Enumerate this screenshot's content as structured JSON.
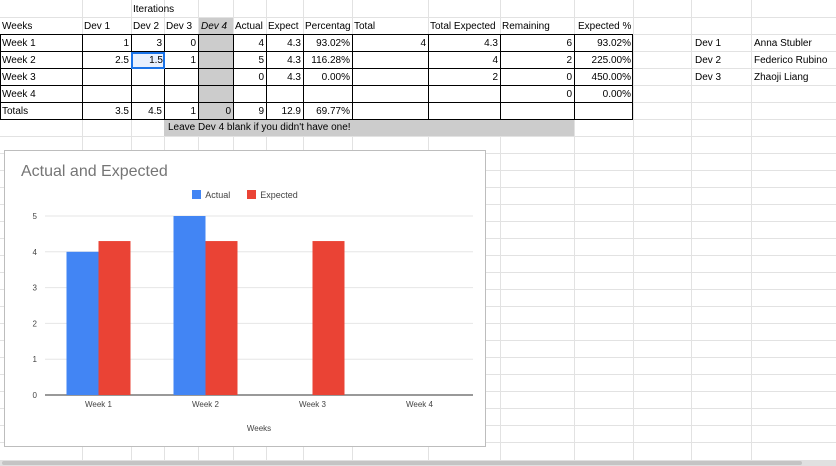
{
  "header": {
    "iterations_label": "Iterations"
  },
  "columns": [
    "Weeks",
    "Dev 1",
    "Dev 2",
    "Dev 3",
    "Dev 4",
    "Actual",
    "Expect",
    "Percentag",
    "Total",
    "",
    "Total Expected",
    "Remaining",
    "Expected %"
  ],
  "rows": [
    {
      "label": "Week 1",
      "dev1": "1",
      "dev2": "3",
      "dev3": "0",
      "dev4": "",
      "actual": "4",
      "expected": "4.3",
      "percent": "93.02%",
      "total": "4",
      "total_expected": "4.3",
      "remaining": "6",
      "expected_pct": "93.02%"
    },
    {
      "label": "Week 2",
      "dev1": "2.5",
      "dev2": "1.5",
      "dev3": "1",
      "dev4": "",
      "actual": "5",
      "expected": "4.3",
      "percent": "116.28%",
      "total": "",
      "total_expected": "4",
      "remaining": "2",
      "expected_pct": "225.00%"
    },
    {
      "label": "Week 3",
      "dev1": "",
      "dev2": "",
      "dev3": "",
      "dev4": "",
      "actual": "0",
      "expected": "4.3",
      "percent": "0.00%",
      "total": "",
      "total_expected": "2",
      "remaining": "0",
      "expected_pct": "450.00%"
    },
    {
      "label": "Week 4",
      "dev1": "",
      "dev2": "",
      "dev3": "",
      "dev4": "",
      "actual": "",
      "expected": "",
      "percent": "",
      "total": "",
      "total_expected": "",
      "remaining": "0",
      "expected_pct": "0.00%"
    }
  ],
  "totals": {
    "label": "Totals",
    "dev1": "3.5",
    "dev2": "4.5",
    "dev3": "1",
    "dev4": "0",
    "actual": "9",
    "expected": "12.9",
    "percent": "69.77%"
  },
  "note": "Leave Dev 4 blank if you didn't have one!",
  "devs": [
    {
      "id": "Dev 1",
      "name": "Anna Stubler"
    },
    {
      "id": "Dev 2",
      "name": "Federico Rubino"
    },
    {
      "id": "Dev 3",
      "name": "Zhaoji Liang"
    }
  ],
  "colors": {
    "actual": "#4285f4",
    "expected": "#ea4335",
    "selection": "#1a73e8"
  },
  "chart_data": {
    "type": "bar",
    "title": "Actual and Expected",
    "xlabel": "Weeks",
    "ylabel": "",
    "categories": [
      "Week 1",
      "Week 2",
      "Week 3",
      "Week 4"
    ],
    "series": [
      {
        "name": "Actual",
        "values": [
          4,
          5,
          0,
          0
        ]
      },
      {
        "name": "Expected",
        "values": [
          4.3,
          4.3,
          4.3,
          0
        ]
      }
    ],
    "ylim": [
      0,
      5
    ],
    "yticks": [
      "0",
      "1",
      "2",
      "3",
      "4",
      "5"
    ],
    "grid": true,
    "legend": "top"
  }
}
